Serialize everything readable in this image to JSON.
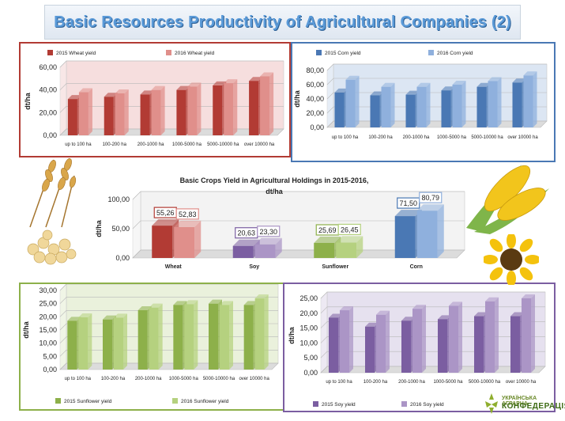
{
  "page_title": "Basic Resources Productivity of Agricultural Companies (2)",
  "logo": {
    "line1": "УКРАЇНСЬКА АГРАРНА",
    "line2": "КОНФЕДЕРАЦІЯ"
  },
  "colors": {
    "wheat_2015": "#b23b34",
    "wheat_2016": "#e08f8b",
    "corn_2015": "#4a78b4",
    "corn_2016": "#8fb0dd",
    "sunflower_2015": "#8db04a",
    "sunflower_2016": "#b5d17f",
    "soy_2015": "#7b5ea1",
    "soy_2016": "#ab95c6",
    "panel_wheat_border": "#b23b34",
    "panel_corn_border": "#4a78b4",
    "panel_sunflower_border": "#8db04a",
    "panel_soy_border": "#7b5ea1"
  },
  "chart_data": [
    {
      "id": "wheat",
      "type": "bar",
      "categories": [
        "up to 100 ha",
        "100-200 ha",
        "200-1000 ha",
        "1000-5000 ha",
        "5000-10000 ha",
        "over 10000 ha"
      ],
      "series": [
        {
          "name": "2015 Wheat yield",
          "values": [
            32,
            34,
            36,
            40,
            44,
            48
          ]
        },
        {
          "name": "2016 Wheat yield",
          "values": [
            38,
            37,
            40,
            43,
            46,
            52
          ]
        }
      ],
      "ylabel": "dt/ha",
      "ylim": [
        0,
        60
      ],
      "yticks": [
        "0,00",
        "20,00",
        "40,00",
        "60,00"
      ],
      "legend_position": "top"
    },
    {
      "id": "corn",
      "type": "bar",
      "categories": [
        "up to 100 ha",
        "100-200 ha",
        "200-1000 ha",
        "1000-5000 ha",
        "5000-10000 ha",
        "over 10000 ha"
      ],
      "series": [
        {
          "name": "2015 Corn yield",
          "values": [
            49,
            45,
            46,
            52,
            57,
            63
          ]
        },
        {
          "name": "2016 Corn yield",
          "values": [
            67,
            57,
            57,
            60,
            65,
            73
          ]
        }
      ],
      "ylabel": "dt/ha",
      "ylim": [
        0,
        80
      ],
      "yticks": [
        "0,00",
        "20,00",
        "40,00",
        "60,00",
        "80,00"
      ],
      "legend_position": "top"
    },
    {
      "id": "basic",
      "type": "bar",
      "title": "Basic Crops Yield in Agricultural Holdings in 2015-2016, dt/ha",
      "categories": [
        "Wheat",
        "Soy",
        "Sunflower",
        "Corn"
      ],
      "series": [
        {
          "name": "2015",
          "values": [
            55.26,
            20.63,
            25.69,
            71.5
          ],
          "labels": [
            "55,26",
            "20,63",
            "25,69",
            "71,50"
          ]
        },
        {
          "name": "2016",
          "values": [
            52.83,
            23.3,
            26.45,
            80.79
          ],
          "labels": [
            "52,83",
            "23,30",
            "26,45",
            "80,79"
          ]
        }
      ],
      "ylabel": "dt/ha",
      "ylim": [
        0,
        100
      ],
      "yticks": [
        "0,00",
        "50,00",
        "100,00"
      ]
    },
    {
      "id": "sunflower",
      "type": "bar",
      "categories": [
        "up to 100 ha",
        "100-200 ha",
        "200-1000 ha",
        "1000-5000 ha",
        "5000-10000 ha",
        "over 10000 ha"
      ],
      "series": [
        {
          "name": "2015 Sunflower yield",
          "values": [
            18.5,
            19,
            22.5,
            24.5,
            25,
            24.5
          ]
        },
        {
          "name": "2016 Sunflower yield",
          "values": [
            19.8,
            19.7,
            23.5,
            24.8,
            24.5,
            27
          ]
        }
      ],
      "ylabel": "dt/ha",
      "ylim": [
        0,
        30
      ],
      "yticks": [
        "0,00",
        "5,00",
        "10,00",
        "15,00",
        "20,00",
        "25,00",
        "30,00"
      ],
      "legend_position": "bottom"
    },
    {
      "id": "soy",
      "type": "bar",
      "categories": [
        "up to 100 ha",
        "100-200 ha",
        "200-1000 ha",
        "1000-5000 ha",
        "5000-10000 ha",
        "over 10000 ha"
      ],
      "series": [
        {
          "name": "2015 Soy yield",
          "values": [
            18.5,
            15.5,
            17.5,
            18,
            19,
            19
          ]
        },
        {
          "name": "2016 Soy yield",
          "values": [
            21,
            19.5,
            21.5,
            22.5,
            24,
            25
          ]
        }
      ],
      "ylabel": "dt/ha",
      "ylim": [
        0,
        25
      ],
      "yticks": [
        "0,00",
        "5,00",
        "10,00",
        "15,00",
        "20,00",
        "25,00"
      ],
      "legend_position": "bottom"
    }
  ]
}
